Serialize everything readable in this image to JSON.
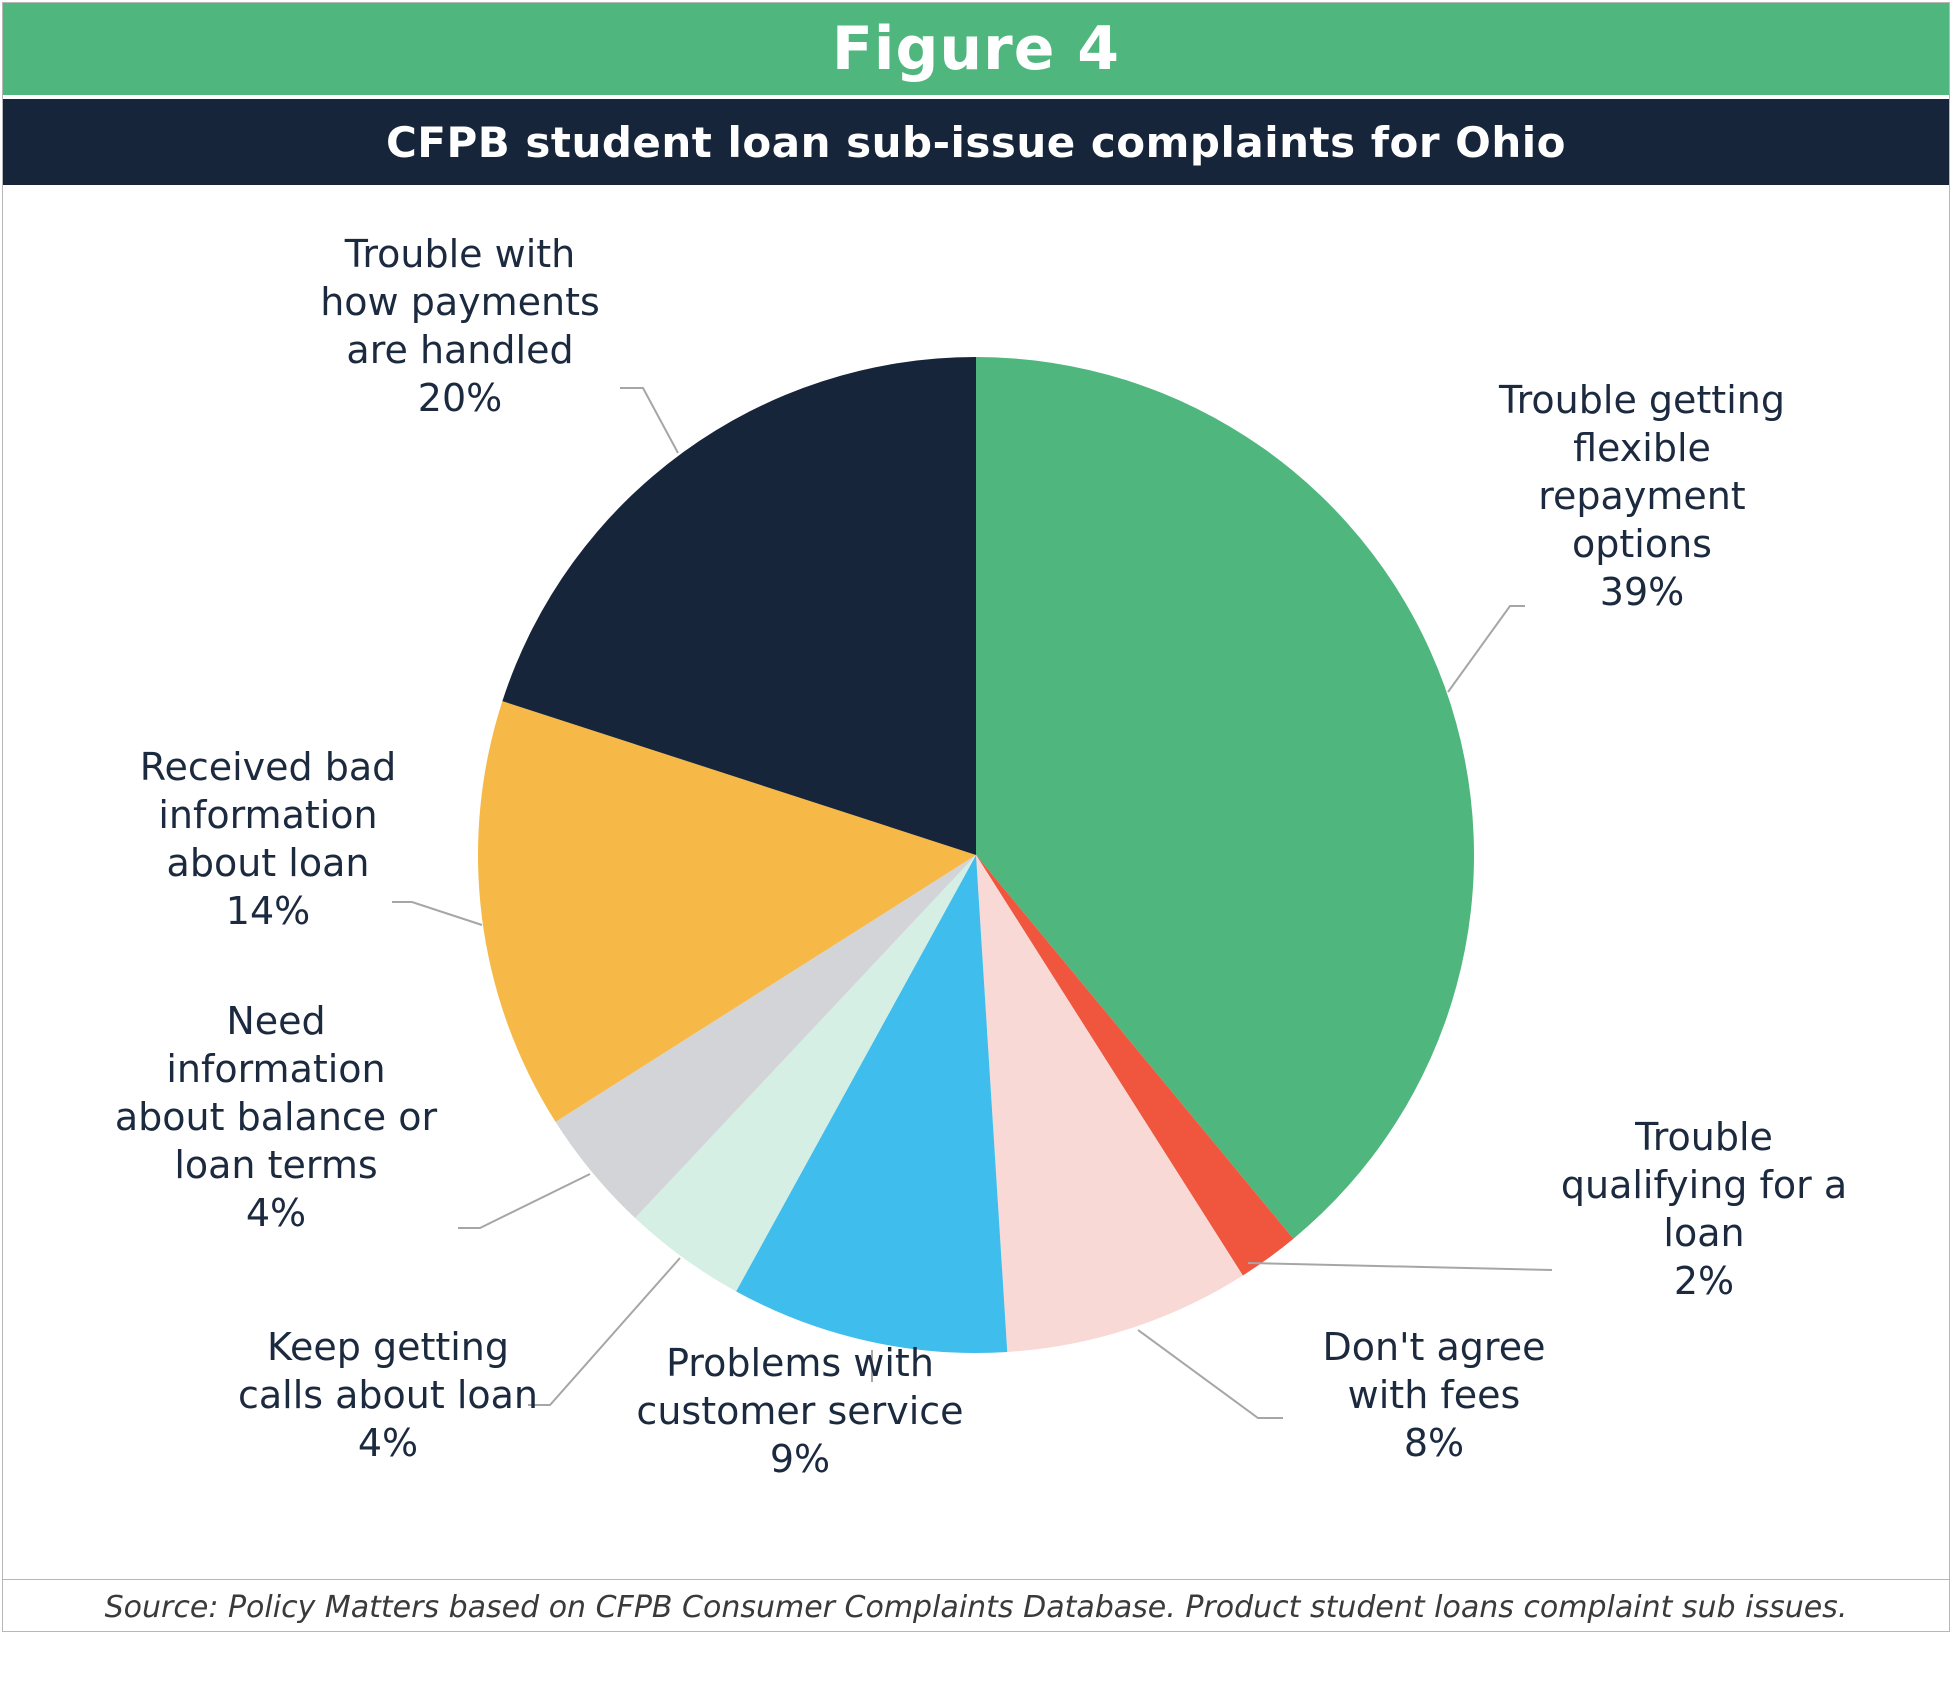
{
  "figure_label": "Figure 4",
  "source_note": "Source: Policy Matters based on CFPB Consumer Complaints Database. Product student loans complaint sub issues.",
  "colors": {
    "header_green": "#4fb77d",
    "header_navy": "#17253a",
    "label_text": "#1c2a3f",
    "leader_line": "#a6a6a6"
  },
  "chart_data": {
    "type": "pie",
    "title": "CFPB student loan sub-issue complaints for Ohio",
    "start_angle_deg": 0,
    "direction": "clockwise",
    "slices": [
      {
        "label": [
          "Trouble getting",
          "flexible",
          "repayment",
          "options"
        ],
        "value": 39,
        "value_label": "39%",
        "color": "#4fb77d"
      },
      {
        "label": [
          "Trouble",
          "qualifying for a",
          "loan"
        ],
        "value": 2,
        "value_label": "2%",
        "color": "#f0553e"
      },
      {
        "label": [
          "Don't agree",
          "with fees"
        ],
        "value": 8,
        "value_label": "8%",
        "color": "#f9d9d6"
      },
      {
        "label": [
          "Problems with",
          "customer service"
        ],
        "value": 9,
        "value_label": "9%",
        "color": "#3fbdec"
      },
      {
        "label": [
          "Keep getting",
          "calls about loan"
        ],
        "value": 4,
        "value_label": "4%",
        "color": "#d6efe4"
      },
      {
        "label": [
          "Need",
          "information",
          "about balance or",
          "loan terms"
        ],
        "value": 4,
        "value_label": "4%",
        "color": "#d2d4d8"
      },
      {
        "label": [
          "Received bad",
          "information",
          "about loan"
        ],
        "value": 14,
        "value_label": "14%",
        "color": "#f6b947"
      },
      {
        "label": [
          "Trouble with",
          "how payments",
          "are handled"
        ],
        "value": 20,
        "value_label": "20%",
        "color": "#17253a"
      }
    ]
  }
}
